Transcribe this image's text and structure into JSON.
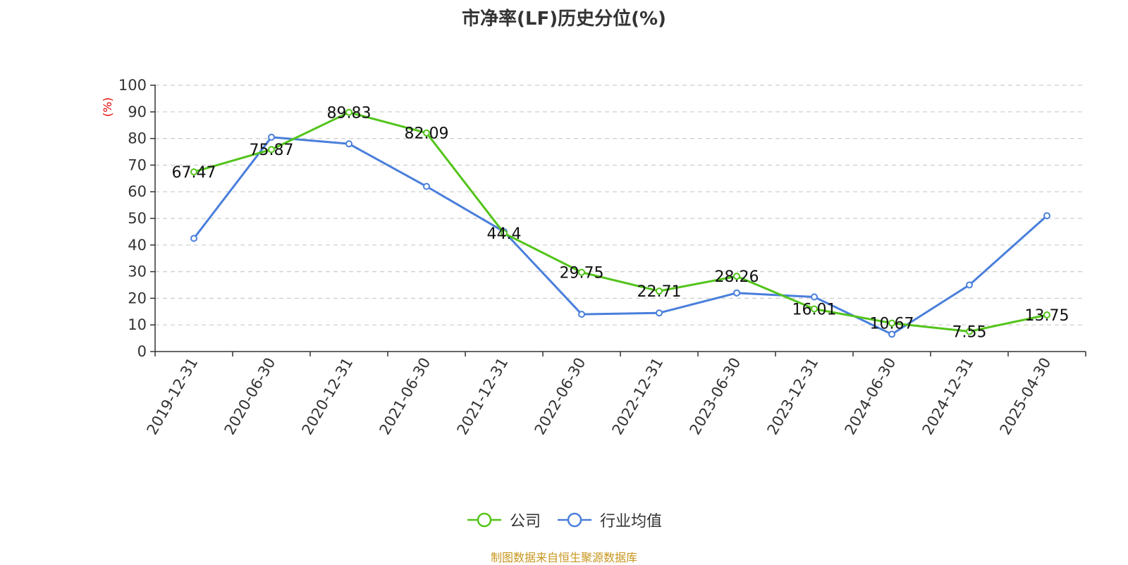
{
  "chart_data": {
    "type": "line",
    "title": "市净率(LF)历史分位(%)",
    "ylabel": "(%)",
    "xlabel": "",
    "ylim": [
      0,
      100
    ],
    "yticks": [
      0,
      10,
      20,
      30,
      40,
      50,
      60,
      70,
      80,
      90,
      100
    ],
    "categories": [
      "2019-12-31",
      "2020-06-30",
      "2020-12-31",
      "2021-06-30",
      "2021-12-31",
      "2022-06-30",
      "2022-12-31",
      "2023-06-30",
      "2023-12-31",
      "2024-06-30",
      "2024-12-31",
      "2025-04-30"
    ],
    "series": [
      {
        "name": "公司",
        "color": "#52c41a",
        "values": [
          67.47,
          75.87,
          89.83,
          82.09,
          44.4,
          29.75,
          22.71,
          28.26,
          16.01,
          10.67,
          7.55,
          13.75
        ],
        "labels": [
          "67.47",
          "75.87",
          "89.83",
          "82.09",
          "44.4",
          "29.75",
          "22.71",
          "28.26",
          "16.01",
          "10.67",
          "7.55",
          "13.75"
        ]
      },
      {
        "name": "行业均值",
        "color": "#4a7fdb",
        "values": [
          42.5,
          80.5,
          78.0,
          62.0,
          45.0,
          14.0,
          14.5,
          22.0,
          20.5,
          6.5,
          25.0,
          51.0
        ]
      }
    ],
    "grid": true,
    "legend_position": "bottom-center"
  },
  "footer": {
    "source": "制图数据来自恒生聚源数据库"
  }
}
